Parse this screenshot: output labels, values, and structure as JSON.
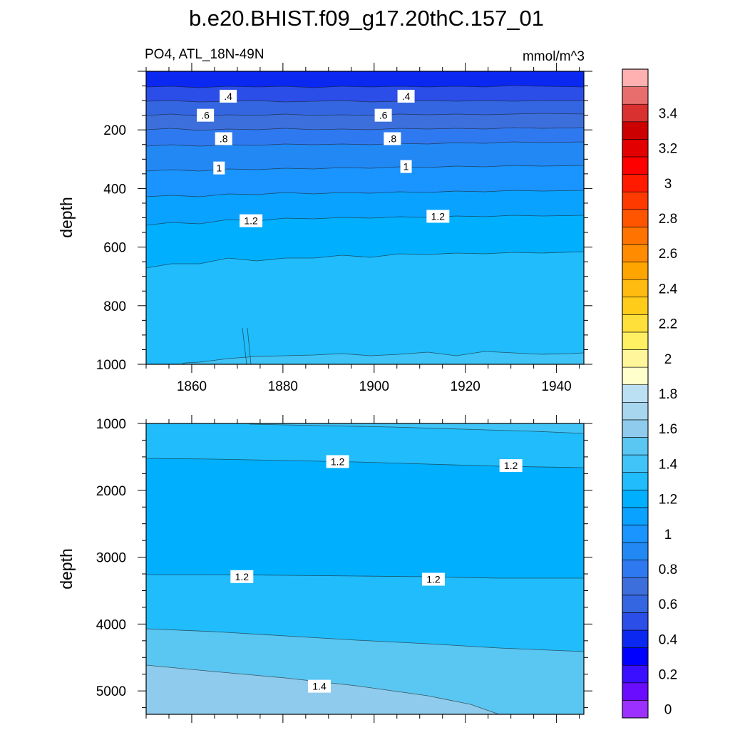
{
  "chart_data": {
    "type": "contour",
    "title": "b.e20.BHIST.f09_g17.20thC.157_01",
    "left_string": "PO4, ATL_18N-49N",
    "right_string": "mmol/m^3",
    "x_ticks": [
      1860,
      1880,
      1900,
      1920,
      1940
    ],
    "x_range": [
      1850,
      1946
    ],
    "colorbar": {
      "levels": [
        0,
        0.1,
        0.2,
        0.3,
        0.4,
        0.5,
        0.6,
        0.7,
        0.8,
        0.9,
        1.0,
        1.1,
        1.2,
        1.3,
        1.4,
        1.5,
        1.6,
        1.7,
        1.8,
        1.9,
        2.0,
        2.1,
        2.2,
        2.3,
        2.4,
        2.5,
        2.6,
        2.7,
        2.8,
        2.9,
        3.0,
        3.1,
        3.2,
        3.3,
        3.4,
        3.5
      ],
      "colors": [
        "#9b30ff",
        "#6a0dff",
        "#3a0fff",
        "#0000ff",
        "#0a28f0",
        "#2b4ee8",
        "#3366e0",
        "#3d6fdc",
        "#2f79f0",
        "#2288f4",
        "#1a94ff",
        "#0aa2ff",
        "#00b0ff",
        "#20bcfb",
        "#40c4f7",
        "#5ac6f2",
        "#8fcbec",
        "#a7d6ee",
        "#bce0f3",
        "#ffffcc",
        "#fff59a",
        "#ffef62",
        "#ffe03a",
        "#ffcc1a",
        "#ffbb10",
        "#ffa500",
        "#ff8c00",
        "#ff7400",
        "#ff5500",
        "#ff3a00",
        "#ff1a00",
        "#ff0000",
        "#e30000",
        "#cc0000",
        "#d93030",
        "#e86e6e",
        "#ffb0b0"
      ],
      "tick_labels": [
        "0",
        "0.2",
        "0.4",
        "0.6",
        "0.8",
        "1",
        "1.2",
        "1.4",
        "1.6",
        "1.8",
        "2",
        "2.2",
        "2.4",
        "2.6",
        "2.8",
        "3",
        "3.2",
        "3.4"
      ]
    },
    "panels": [
      {
        "name": "upper",
        "ylabel": "depth",
        "y_range": [
          0,
          1000
        ],
        "y_ticks": [
          200,
          400,
          600,
          800,
          1000
        ],
        "contour_labels": [
          {
            "text": ".4",
            "x": 1868,
            "y": 85
          },
          {
            "text": ".4",
            "x": 1907,
            "y": 85
          },
          {
            "text": ".6",
            "x": 1863,
            "y": 150
          },
          {
            "text": ".6",
            "x": 1902,
            "y": 150
          },
          {
            "text": ".8",
            "x": 1867,
            "y": 230
          },
          {
            "text": ".8",
            "x": 1904,
            "y": 230
          },
          {
            "text": "1",
            "x": 1866,
            "y": 330
          },
          {
            "text": "1",
            "x": 1907,
            "y": 325
          },
          {
            "text": "1.2",
            "x": 1873,
            "y": 510
          },
          {
            "text": "1.2",
            "x": 1914,
            "y": 495
          }
        ]
      },
      {
        "name": "lower",
        "ylabel": "depth",
        "y_range": [
          1000,
          5350
        ],
        "y_ticks": [
          1000,
          2000,
          3000,
          4000,
          5000
        ],
        "contour_labels": [
          {
            "text": "1.2",
            "x": 1892,
            "y": 1570
          },
          {
            "text": "1.2",
            "x": 1930,
            "y": 1630
          },
          {
            "text": "1.2",
            "x": 1871,
            "y": 3290
          },
          {
            "text": "1.2",
            "x": 1913,
            "y": 3330
          },
          {
            "text": "1.4",
            "x": 1888,
            "y": 4930
          }
        ]
      }
    ]
  }
}
